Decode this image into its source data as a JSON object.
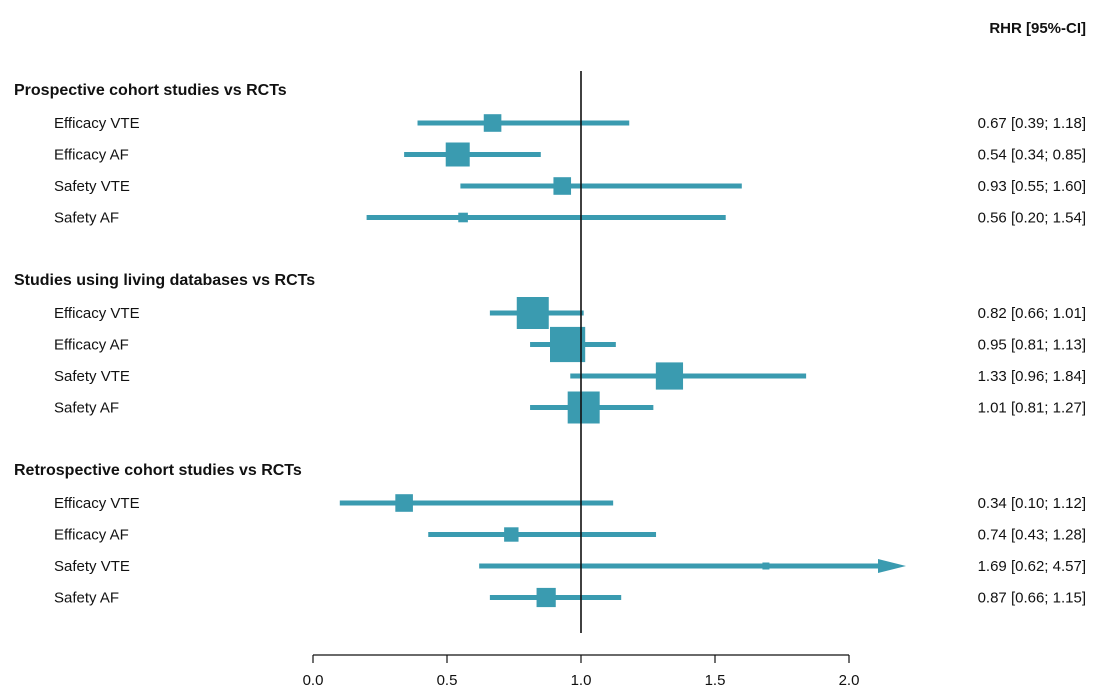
{
  "chart_data": {
    "type": "forest",
    "column_header": "RHR [95%-CI]",
    "reference_line": 1.0,
    "xlim": [
      0.0,
      2.0
    ],
    "x_ticks": [
      0.0,
      0.5,
      1.0,
      1.5,
      2.0
    ],
    "x_tick_labels": [
      "0.0",
      "0.5",
      "1.0",
      "1.5",
      "2.0"
    ],
    "colors": {
      "marker": "#3a9bb0",
      "axis": "#111111"
    },
    "groups": [
      {
        "title": "Prospective cohort studies vs  RCTs",
        "rows": [
          {
            "label": "Efficacy VTE",
            "estimate": 0.67,
            "lower": 0.39,
            "upper": 1.18,
            "ci_text": "0.67 [0.39; 1.18]",
            "weight": 0.55
          },
          {
            "label": "Efficacy AF",
            "estimate": 0.54,
            "lower": 0.34,
            "upper": 0.85,
            "ci_text": "0.54 [0.34; 0.85]",
            "weight": 0.75
          },
          {
            "label": "Safety VTE",
            "estimate": 0.93,
            "lower": 0.55,
            "upper": 1.6,
            "ci_text": "0.93 [0.55; 1.60]",
            "weight": 0.55
          },
          {
            "label": "Safety AF",
            "estimate": 0.56,
            "lower": 0.2,
            "upper": 1.54,
            "ci_text": "0.56 [0.20; 1.54]",
            "weight": 0.3
          }
        ]
      },
      {
        "title": "Studies using living databases vs RCTs",
        "rows": [
          {
            "label": "Efficacy VTE",
            "estimate": 0.82,
            "lower": 0.66,
            "upper": 1.01,
            "ci_text": "0.82 [0.66; 1.01]",
            "weight": 1.0
          },
          {
            "label": "Efficacy AF",
            "estimate": 0.95,
            "lower": 0.81,
            "upper": 1.13,
            "ci_text": "0.95 [0.81; 1.13]",
            "weight": 1.1
          },
          {
            "label": "Safety VTE",
            "estimate": 1.33,
            "lower": 0.96,
            "upper": 1.84,
            "ci_text": "1.33 [0.96; 1.84]",
            "weight": 0.85
          },
          {
            "label": "Safety AF",
            "estimate": 1.01,
            "lower": 0.81,
            "upper": 1.27,
            "ci_text": "1.01 [0.81; 1.27]",
            "weight": 1.0
          }
        ]
      },
      {
        "title": "Retrospective cohort studies vs RCTs",
        "rows": [
          {
            "label": "Efficacy VTE",
            "estimate": 0.34,
            "lower": 0.1,
            "upper": 1.12,
            "ci_text": "0.34 [0.10; 1.12]",
            "weight": 0.55
          },
          {
            "label": "Efficacy AF",
            "estimate": 0.74,
            "lower": 0.43,
            "upper": 1.28,
            "ci_text": "0.74 [0.43; 1.28]",
            "weight": 0.45
          },
          {
            "label": "Safety VTE",
            "estimate": 1.69,
            "lower": 0.62,
            "upper": 4.57,
            "ci_text": "1.69 [0.62; 4.57]",
            "weight": 0.2
          },
          {
            "label": "Safety AF",
            "estimate": 0.87,
            "lower": 0.66,
            "upper": 1.15,
            "ci_text": "0.87 [0.66; 1.15]",
            "weight": 0.6
          }
        ]
      }
    ]
  }
}
